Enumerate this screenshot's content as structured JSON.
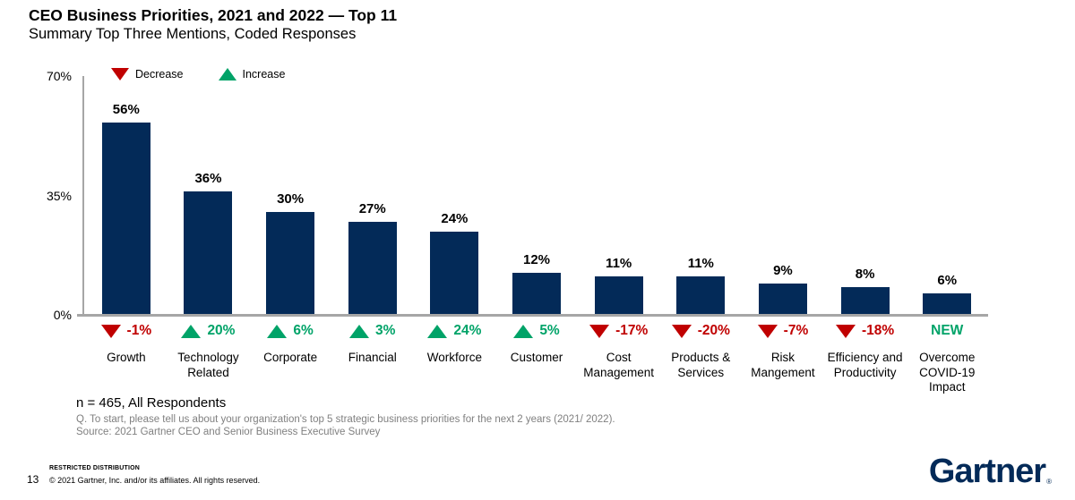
{
  "header": {
    "title": "CEO Business Priorities, 2021 and 2022 — Top 11",
    "subtitle": "Summary Top Three Mentions, Coded Responses"
  },
  "legend": {
    "decrease_label": "Decrease",
    "increase_label": "Increase"
  },
  "chart_data": {
    "type": "bar",
    "title": "CEO Business Priorities, 2021 and 2022 — Top 11",
    "subtitle": "Summary Top Three Mentions, Coded Responses",
    "categories": [
      "Growth",
      "Technology Related",
      "Corporate",
      "Financial",
      "Workforce",
      "Customer",
      "Cost Management",
      "Products & Services",
      "Risk Mangement",
      "Efficiency and Productivity",
      "Overcome COVID-19 Impact"
    ],
    "values": [
      56,
      36,
      30,
      27,
      24,
      12,
      11,
      11,
      9,
      8,
      6
    ],
    "value_labels": [
      "56%",
      "36%",
      "30%",
      "27%",
      "24%",
      "12%",
      "11%",
      "11%",
      "9%",
      "8%",
      "6%"
    ],
    "changes": [
      "-1%",
      "20%",
      "6%",
      "3%",
      "24%",
      "5%",
      "-17%",
      "-20%",
      "-7%",
      "-18%",
      "NEW"
    ],
    "change_directions": [
      "down",
      "up",
      "up",
      "up",
      "up",
      "up",
      "down",
      "down",
      "down",
      "down",
      "new"
    ],
    "y_ticks": [
      {
        "label": "70%",
        "value": 70
      },
      {
        "label": "35%",
        "value": 35
      },
      {
        "label": "0%",
        "value": 0
      }
    ],
    "ylim": [
      0,
      70
    ],
    "xlabel": "",
    "ylabel": "",
    "grid": false,
    "legend_position": "top-left",
    "bar_color": "#032a58",
    "increase_color": "#00a368",
    "decrease_color": "#c00000",
    "axis_color": "#a6a6a6"
  },
  "notes": {
    "n_line": "n = 465, All Respondents",
    "question": "Q. To start, please tell us about your organization's top 5 strategic business priorities for the next 2 years (2021/ 2022).",
    "source": "Source: 2021 Gartner CEO and Senior Business Executive Survey"
  },
  "footer": {
    "page_number": "13",
    "restricted": "RESTRICTED DISTRIBUTION",
    "copyright": "© 2021 Gartner, Inc. and/or its affiliates. All rights reserved.",
    "logo_text": "Gartner",
    "registered_mark": "®"
  }
}
